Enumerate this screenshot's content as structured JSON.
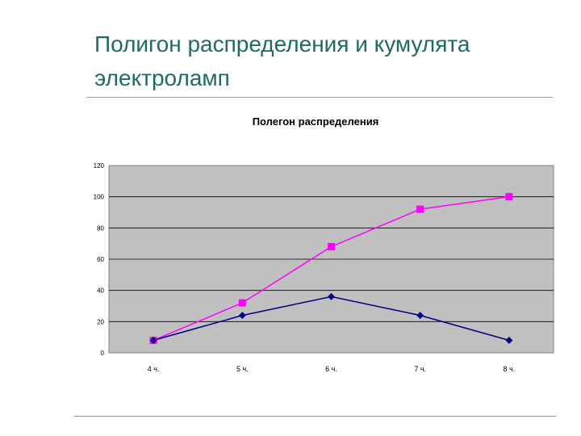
{
  "slide": {
    "title": "Полигон распределения и кумулята электроламп"
  },
  "colors": {
    "plot_background": "#c0c0c0",
    "title_color": "#1f6b62",
    "series_1": "#ff00ff",
    "series_2": "#000080"
  },
  "chart_data": {
    "type": "line",
    "title": "Полегон распределения",
    "xlabel": "",
    "ylabel": "",
    "categories": [
      "4 ч.",
      "5 ч.",
      "6 ч.",
      "7 ч.",
      "8 ч."
    ],
    "ylim": [
      0,
      120
    ],
    "yticks": [
      0,
      20,
      40,
      60,
      80,
      100,
      120
    ],
    "grid": true,
    "legend": "none",
    "series": [
      {
        "values": [
          8,
          32,
          68,
          92,
          100
        ],
        "color": "#ff00ff",
        "marker": "square"
      },
      {
        "values": [
          8,
          24,
          36,
          24,
          8
        ],
        "color": "#000080",
        "marker": "diamond"
      }
    ]
  }
}
